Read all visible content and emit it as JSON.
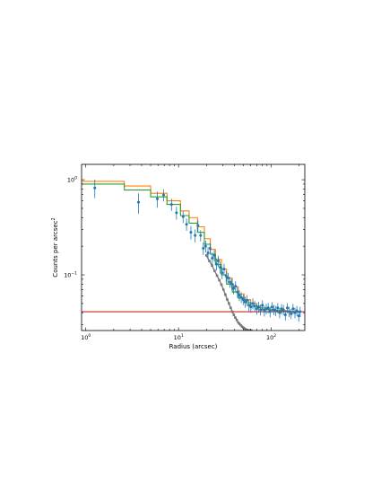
{
  "chart_data": {
    "type": "line",
    "xlabel": "Radius (arcsec)",
    "ylabel": "Counts per arcsec",
    "ylabel_sup": "2",
    "x_scale": "log",
    "y_scale": "log",
    "xlim": [
      0.9,
      230
    ],
    "ylim": [
      0.026,
      1.45
    ],
    "x_ticks": [
      {
        "value": 1,
        "label": "10",
        "sup": "0"
      },
      {
        "value": 10,
        "label": "10",
        "sup": "1"
      },
      {
        "value": 100,
        "label": "10",
        "sup": "2"
      }
    ],
    "y_ticks": [
      {
        "value": 0.1,
        "label": "10",
        "sup": "−1"
      },
      {
        "value": 1,
        "label": "10",
        "sup": "0"
      }
    ],
    "grid": false,
    "legend": "none",
    "colors": {
      "data": "#1f77b4",
      "total_model": "#ff7f0e",
      "green_model": "#2ca02c",
      "background": "#d62728",
      "source": "#7f7f7f"
    },
    "step_edges": [
      0.9,
      2.6,
      5.0,
      7.5,
      10.5,
      13,
      16,
      19,
      22,
      25,
      29,
      33,
      38,
      44,
      51,
      60,
      70,
      80,
      95,
      110,
      130,
      150,
      175,
      210
    ],
    "series": [
      {
        "kind": "step",
        "color": "#ff7f0e",
        "values": [
          0.96,
          0.86,
          0.72,
          0.6,
          0.47,
          0.4,
          0.32,
          0.24,
          0.185,
          0.145,
          0.115,
          0.092,
          0.075,
          0.063,
          0.055,
          0.05,
          0.047,
          0.045,
          0.0435,
          0.0425,
          0.042,
          0.0415,
          0.0412
        ]
      },
      {
        "kind": "step",
        "color": "#2ca02c",
        "values": [
          0.9,
          0.78,
          0.66,
          0.55,
          0.42,
          0.35,
          0.28,
          0.21,
          0.165,
          0.128,
          0.1,
          0.08,
          0.066,
          0.057,
          0.051,
          0.047,
          0.045,
          0.0435,
          0.0425,
          0.042,
          0.0415,
          0.041,
          0.0408
        ]
      },
      {
        "kind": "hline",
        "color": "#d62728",
        "y": 0.041
      },
      {
        "kind": "source",
        "color": "#7f7f7f",
        "x": [
          20,
          21.5,
          23,
          24.5,
          26,
          27.5,
          29,
          30.5,
          32,
          33.5,
          35,
          36.5,
          38,
          39.5,
          41,
          42.5,
          44,
          45.5,
          47,
          48.5,
          50,
          51.5,
          53,
          54.5,
          56,
          57.5,
          59,
          61
        ],
        "y": [
          0.16,
          0.14,
          0.125,
          0.11,
          0.098,
          0.088,
          0.079,
          0.07,
          0.062,
          0.055,
          0.05,
          0.045,
          0.041,
          0.038,
          0.0355,
          0.0335,
          0.0315,
          0.0305,
          0.0295,
          0.0285,
          0.0278,
          0.0272,
          0.0268,
          0.0264,
          0.0262,
          0.0261,
          0.026,
          0.026
        ]
      },
      {
        "kind": "errorbar",
        "color": "#1f77b4",
        "x": [
          1.25,
          3.7,
          5.9,
          6.9,
          8.4,
          9.5,
          11.2,
          12.2,
          13.6,
          15.1,
          16.2,
          17.3,
          18.5,
          19.6,
          20.8,
          21.9,
          23.1,
          24.3,
          25.6,
          26.8,
          28.1,
          29.5,
          31,
          32.6,
          34.2,
          35.9,
          37.5,
          39.3,
          41.2,
          43.2,
          45.3,
          47.5,
          49.8,
          52.2,
          54.8,
          57.5,
          60.3,
          63.3,
          66.4,
          69.7,
          73,
          76.6,
          80.3,
          84.2,
          88.3,
          92.6,
          97.1,
          101.8,
          106.8,
          112,
          117.4,
          123.1,
          129.1,
          135.4,
          142,
          148.9,
          156.1,
          163.7,
          171.7,
          180,
          188.8,
          197.9,
          205
        ],
        "y": [
          0.82,
          0.58,
          0.63,
          0.69,
          0.55,
          0.45,
          0.41,
          0.34,
          0.28,
          0.26,
          0.33,
          0.26,
          0.19,
          0.2,
          0.17,
          0.19,
          0.15,
          0.16,
          0.13,
          0.14,
          0.12,
          0.105,
          0.115,
          0.097,
          0.093,
          0.084,
          0.08,
          0.072,
          0.076,
          0.066,
          0.061,
          0.058,
          0.055,
          0.052,
          0.054,
          0.048,
          0.046,
          0.05,
          0.047,
          0.044,
          0.046,
          0.043,
          0.048,
          0.042,
          0.044,
          0.045,
          0.041,
          0.046,
          0.043,
          0.042,
          0.045,
          0.04,
          0.044,
          0.043,
          0.038,
          0.045,
          0.041,
          0.039,
          0.044,
          0.04,
          0.042,
          0.037,
          0.041
        ],
        "err": [
          0.18,
          0.14,
          0.12,
          0.1,
          0.08,
          0.07,
          0.06,
          0.05,
          0.045,
          0.04,
          0.045,
          0.035,
          0.028,
          0.028,
          0.025,
          0.026,
          0.022,
          0.022,
          0.019,
          0.019,
          0.017,
          0.015,
          0.016,
          0.013,
          0.012,
          0.011,
          0.0105,
          0.0095,
          0.0095,
          0.0085,
          0.008,
          0.0075,
          0.007,
          0.007,
          0.007,
          0.0065,
          0.0062,
          0.0065,
          0.006,
          0.0058,
          0.006,
          0.0056,
          0.006,
          0.0055,
          0.0056,
          0.0056,
          0.0052,
          0.0056,
          0.0053,
          0.0052,
          0.0055,
          0.005,
          0.0054,
          0.0053,
          0.0048,
          0.0055,
          0.005,
          0.0048,
          0.0054,
          0.005,
          0.0052,
          0.0047,
          0.0051
        ]
      }
    ]
  }
}
